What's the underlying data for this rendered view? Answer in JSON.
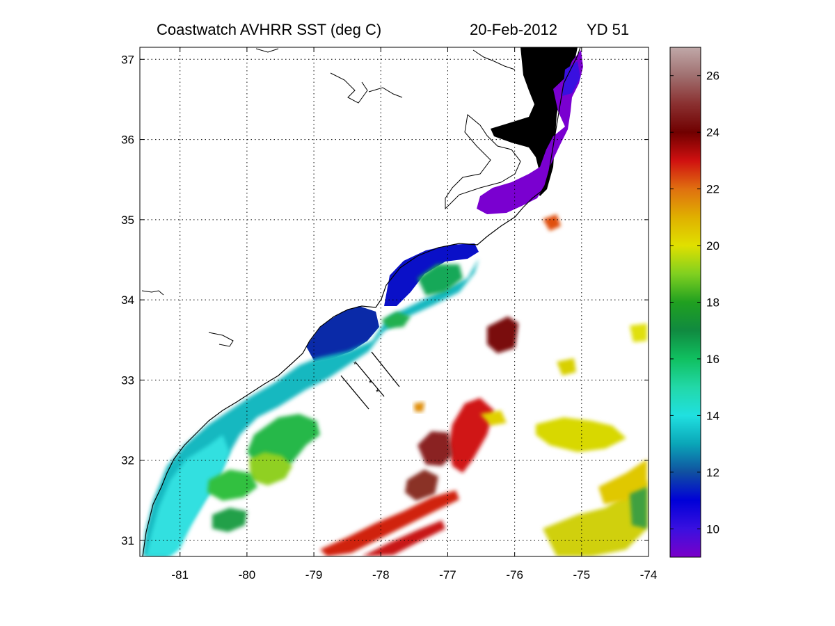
{
  "title": {
    "product": "Coastwatch   AVHRR   SST  (deg C)",
    "date": "20-Feb-2012",
    "yearday": "YD 51"
  },
  "map": {
    "lon_range": [
      -81.6,
      -74.0
    ],
    "lat_range": [
      30.8,
      37.15
    ],
    "lon_ticks": [
      {
        "value": -81,
        "label": "-81"
      },
      {
        "value": -80,
        "label": "-80"
      },
      {
        "value": -79,
        "label": "-79"
      },
      {
        "value": -78,
        "label": "-78"
      },
      {
        "value": -77,
        "label": "-77"
      },
      {
        "value": -76,
        "label": "-76"
      },
      {
        "value": -75,
        "label": "-75"
      },
      {
        "value": -74,
        "label": "-74"
      }
    ],
    "lat_ticks": [
      {
        "value": 31,
        "label": "31"
      },
      {
        "value": 32,
        "label": "32"
      },
      {
        "value": 33,
        "label": "33"
      },
      {
        "value": 34,
        "label": "34"
      },
      {
        "value": 35,
        "label": "35"
      },
      {
        "value": 36,
        "label": "36"
      },
      {
        "value": 37,
        "label": "37"
      }
    ],
    "grid": "dotted"
  },
  "colorbar": {
    "range": [
      9,
      27
    ],
    "ticks": [
      {
        "value": 10,
        "label": "10"
      },
      {
        "value": 12,
        "label": "12"
      },
      {
        "value": 14,
        "label": "14"
      },
      {
        "value": 16,
        "label": "16"
      },
      {
        "value": 18,
        "label": "18"
      },
      {
        "value": 20,
        "label": "20"
      },
      {
        "value": 22,
        "label": "22"
      },
      {
        "value": 24,
        "label": "24"
      },
      {
        "value": 26,
        "label": "26"
      }
    ],
    "stops": [
      {
        "value": 9,
        "color": "#7a00c8"
      },
      {
        "value": 10,
        "color": "#3a10e0"
      },
      {
        "value": 11,
        "color": "#0000d8"
      },
      {
        "value": 12,
        "color": "#1050a0"
      },
      {
        "value": 13,
        "color": "#0aa6b8"
      },
      {
        "value": 14,
        "color": "#20e0e0"
      },
      {
        "value": 15,
        "color": "#22d8a8"
      },
      {
        "value": 16,
        "color": "#10c060"
      },
      {
        "value": 17,
        "color": "#108a40"
      },
      {
        "value": 18,
        "color": "#20a020"
      },
      {
        "value": 19,
        "color": "#80d020"
      },
      {
        "value": 20,
        "color": "#e0e000"
      },
      {
        "value": 21,
        "color": "#e0b000"
      },
      {
        "value": 22,
        "color": "#e07010"
      },
      {
        "value": 23,
        "color": "#d01010"
      },
      {
        "value": 24,
        "color": "#700000"
      },
      {
        "value": 25,
        "color": "#8a3030"
      },
      {
        "value": 26,
        "color": "#a07070"
      },
      {
        "value": 27,
        "color": "#c0a8a8"
      }
    ]
  },
  "colors": {
    "land": "#000000",
    "coastline": "#000000",
    "background": "#ffffff"
  }
}
